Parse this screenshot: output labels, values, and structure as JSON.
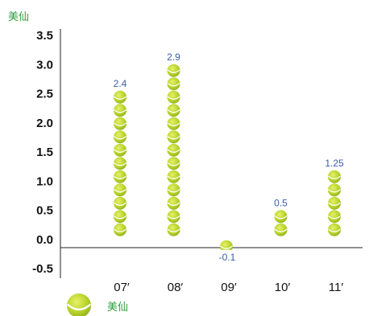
{
  "chart_data": {
    "type": "bar",
    "unit_label": "美仙",
    "categories": [
      "07′",
      "08′",
      "09′",
      "10′",
      "11′"
    ],
    "values": [
      2.4,
      2.9,
      -0.1,
      0.5,
      1.25
    ],
    "value_labels": [
      "2.4",
      "2.9",
      "-0.1",
      "0.5",
      "1.25"
    ],
    "yticks": [
      "3.5",
      "3.0",
      "2.5",
      "2.0",
      "1.5",
      "1.0",
      "0.5",
      "0.0",
      "-0.5"
    ],
    "ylim": [
      -0.5,
      3.5
    ],
    "legend": {
      "label": "美仙",
      "icon": "tennis-ball-icon",
      "placement": "bottom-left"
    },
    "colors": {
      "ball": "#b9d42c",
      "ball_shade": "#8fb01c",
      "seam": "#ffffff",
      "value_label": "#3a5ea6",
      "unit": "#2f9e3f"
    }
  }
}
